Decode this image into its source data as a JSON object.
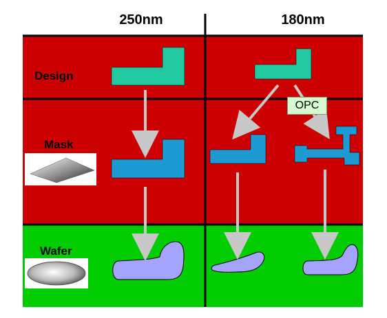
{
  "columns": {
    "left": "250nm",
    "right": "180nm"
  },
  "rows": {
    "design": "Design",
    "mask": "Mask",
    "wafer": "Wafer"
  },
  "opc_label": "OPC",
  "colors": {
    "design_shape": "#22c9a0",
    "mask_shape": "#1e9ad3",
    "wafer_shape": "#a4a4ff",
    "red_band": "#cc0000",
    "green_band": "#00cc00",
    "arrow": "#c8c8c8",
    "opc_box": "#d6fbd0"
  }
}
